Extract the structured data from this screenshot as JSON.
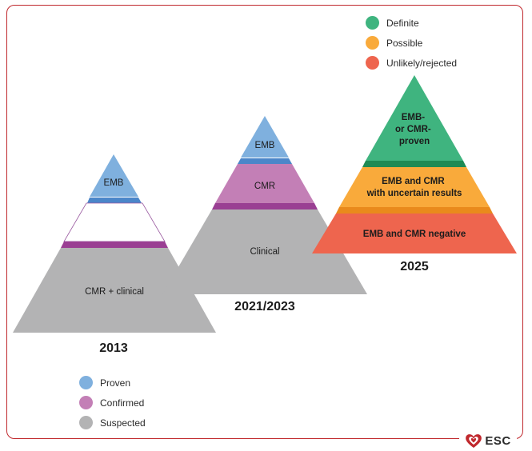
{
  "colors": {
    "proven": "#7fb0de",
    "confirmed": "#c37fb6",
    "suspected": "#b3b3b4",
    "definite": "#3fb47f",
    "possible": "#f9aa3b",
    "unlikely": "#ee654e",
    "frame": "#c0282d"
  },
  "pyramid_2013": {
    "year": "2013",
    "top_label": "EMB",
    "bottom_label": "CMR + clinical"
  },
  "pyramid_2021": {
    "year": "2021/2023",
    "top_label": "EMB",
    "middle_label": "CMR",
    "bottom_label": "Clinical"
  },
  "pyramid_2025": {
    "year": "2025",
    "top_label": [
      "EMB-",
      "or CMR-",
      "proven"
    ],
    "middle_label": [
      "EMB and CMR",
      "with uncertain results"
    ],
    "bottom_label": "EMB and CMR negative"
  },
  "legend_top": [
    {
      "label": "Definite",
      "color": "#3fb47f"
    },
    {
      "label": "Possible",
      "color": "#f9aa3b"
    },
    {
      "label": "Unlikely/rejected",
      "color": "#ee654e"
    }
  ],
  "legend_bottom": [
    {
      "label": "Proven",
      "color": "#7fb0de"
    },
    {
      "label": "Confirmed",
      "color": "#c37fb6"
    },
    {
      "label": "Suspected",
      "color": "#b3b3b4"
    }
  ],
  "logo": {
    "text": "ESC",
    "icon": "heart-icon"
  }
}
